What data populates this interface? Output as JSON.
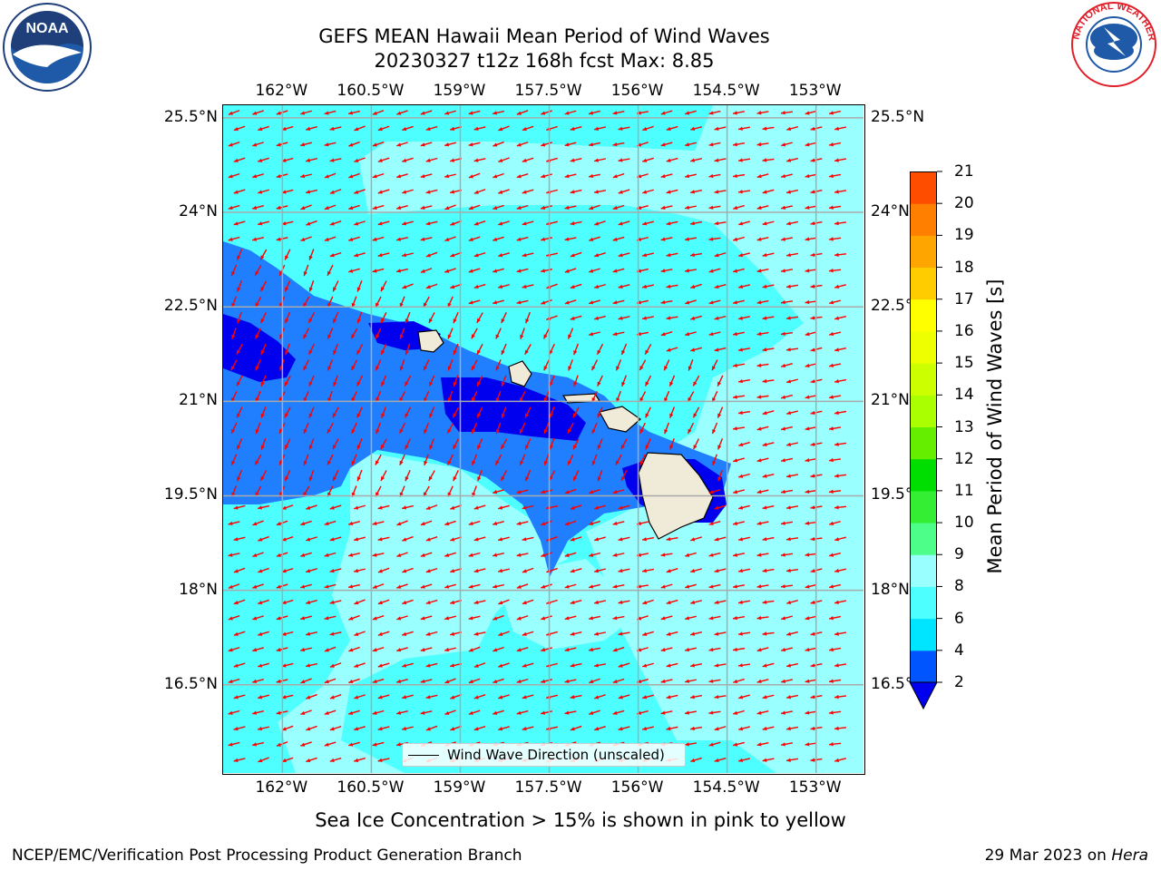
{
  "title": {
    "line1": "GEFS MEAN Hawaii Mean Period of Wind Waves",
    "line2": "20230327 t12z 168h fcst   Max: 8.85"
  },
  "axes": {
    "lon_labels": [
      "162°W",
      "160.5°W",
      "159°W",
      "157.5°W",
      "156°W",
      "154.5°W",
      "153°W"
    ],
    "lat_labels": [
      "25.5°N",
      "24°N",
      "22.5°N",
      "21°N",
      "19.5°N",
      "18°N",
      "16.5°N"
    ],
    "lon_values": [
      -162,
      -160.5,
      -159,
      -157.5,
      -156,
      -154.5,
      -153
    ],
    "lat_values": [
      25.5,
      24,
      22.5,
      21,
      19.5,
      18,
      16.5
    ],
    "lon_range": [
      -163,
      -152.2
    ],
    "lat_range": [
      15.1,
      25.7
    ],
    "grid": true
  },
  "legend": {
    "label": "Wind Wave Direction (unscaled)"
  },
  "colorbar": {
    "label": "Mean Period of Wind Waves [s]",
    "tick_labels": [
      "2",
      "4",
      "6",
      "8",
      "9",
      "10",
      "11",
      "12",
      "13",
      "14",
      "15",
      "16",
      "17",
      "18",
      "19",
      "20",
      "21"
    ],
    "levels": [
      2,
      4,
      6,
      8,
      9,
      10,
      11,
      12,
      13,
      14,
      15,
      16,
      17,
      18,
      19,
      20,
      21
    ],
    "colors": [
      "#0055ff",
      "#00e5ff",
      "#4dffff",
      "#99ffff",
      "#4dff88",
      "#33ee33",
      "#00dd00",
      "#66ee00",
      "#aaff00",
      "#ccff00",
      "#eeff00",
      "#ffff00",
      "#ffcc00",
      "#ffa500",
      "#ff7f00",
      "#ff4d00",
      "#ff2200",
      "#ff0000"
    ],
    "under_color": "#0000ee",
    "extend": "min"
  },
  "field_colors": {
    "ocean_light": "#99ffff",
    "ocean_cyan": "#4dffff",
    "ocean_blue": "#1f7fff",
    "ocean_dark": "#0000ee",
    "land": "#f0ead8",
    "arrows": "#ff0000"
  },
  "subcaption": "Sea Ice Concentration > 15% is shown in pink to yellow",
  "footer": {
    "left": "NCEP/EMC/Verification Post Processing Product Generation Branch",
    "right_date": "29 Mar 2023 on",
    "right_host": "Hera"
  },
  "logos": {
    "left": "noaa-logo",
    "right": "nws-logo"
  }
}
